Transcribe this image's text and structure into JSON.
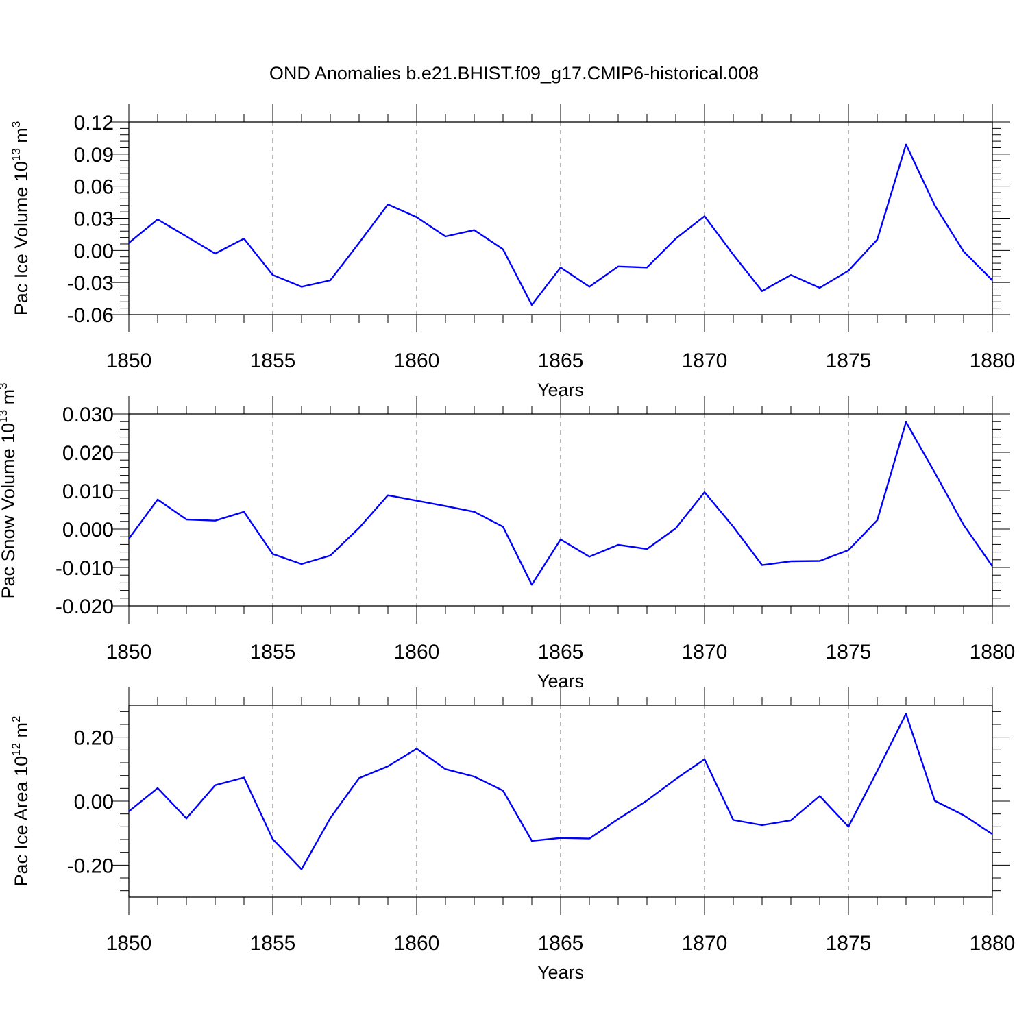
{
  "title": "OND Anomalies b.e21.BHIST.f09_g17.CMIP6-historical.008",
  "colors": {
    "line": "#0000ff",
    "axis": "#000000",
    "background": "#ffffff"
  },
  "chart_data": [
    {
      "type": "line",
      "ylabel_main": "Pac Ice Volume 10",
      "ylabel_exp": "13",
      "ylabel_unit": "m",
      "ylabel_unit_exp": "3",
      "xlabel": "Years",
      "xlim": [
        1850,
        1880
      ],
      "ylim": [
        -0.06,
        0.12
      ],
      "yticks": [
        "-0.06",
        "-0.03",
        "0.00",
        "0.03",
        "0.06",
        "0.09",
        "0.12"
      ],
      "ytick_values": [
        -0.06,
        -0.03,
        0.0,
        0.03,
        0.06,
        0.09,
        0.12
      ],
      "xticks": [
        "1850",
        "1855",
        "1860",
        "1865",
        "1870",
        "1875",
        "1880"
      ],
      "xtick_values": [
        1850,
        1855,
        1860,
        1865,
        1870,
        1875,
        1880
      ],
      "x": [
        1850,
        1851,
        1852,
        1853,
        1854,
        1855,
        1856,
        1857,
        1858,
        1859,
        1860,
        1861,
        1862,
        1863,
        1864,
        1865,
        1866,
        1867,
        1868,
        1869,
        1870,
        1871,
        1872,
        1873,
        1874,
        1875,
        1876,
        1877,
        1878,
        1879,
        1880
      ],
      "values": [
        0.007,
        0.029,
        0.013,
        -0.003,
        0.011,
        -0.023,
        -0.034,
        -0.028,
        0.007,
        0.043,
        0.031,
        0.013,
        0.019,
        0.001,
        -0.051,
        -0.016,
        -0.034,
        -0.015,
        -0.016,
        0.011,
        0.032,
        -0.004,
        -0.038,
        -0.023,
        -0.035,
        -0.019,
        0.01,
        0.099,
        0.042,
        -0.001,
        -0.028
      ]
    },
    {
      "type": "line",
      "ylabel_main": "Pac Snow Volume 10",
      "ylabel_exp": "13",
      "ylabel_unit": "m",
      "ylabel_unit_exp": "3",
      "xlabel": "Years",
      "xlim": [
        1850,
        1880
      ],
      "ylim": [
        -0.02,
        0.03
      ],
      "yticks": [
        "-0.020",
        "-0.010",
        "0.000",
        "0.010",
        "0.020",
        "0.030"
      ],
      "ytick_values": [
        -0.02,
        -0.01,
        0.0,
        0.01,
        0.02,
        0.03
      ],
      "xticks": [
        "1850",
        "1855",
        "1860",
        "1865",
        "1870",
        "1875",
        "1880"
      ],
      "xtick_values": [
        1850,
        1855,
        1860,
        1865,
        1870,
        1875,
        1880
      ],
      "x": [
        1850,
        1851,
        1852,
        1853,
        1854,
        1855,
        1856,
        1857,
        1858,
        1859,
        1860,
        1861,
        1862,
        1863,
        1864,
        1865,
        1866,
        1867,
        1868,
        1869,
        1870,
        1871,
        1872,
        1873,
        1874,
        1875,
        1876,
        1877,
        1878,
        1879,
        1880
      ],
      "values": [
        -0.0025,
        0.0077,
        0.0025,
        0.0022,
        0.0045,
        -0.0065,
        -0.0091,
        -0.0069,
        0.0003,
        0.0088,
        0.0074,
        0.006,
        0.0045,
        0.0006,
        -0.0145,
        -0.0027,
        -0.0072,
        -0.0041,
        -0.0052,
        0.0002,
        0.0096,
        0.0006,
        -0.0094,
        -0.0084,
        -0.0083,
        -0.0055,
        0.0023,
        0.0279,
        0.0147,
        0.0011,
        -0.0097
      ]
    },
    {
      "type": "line",
      "ylabel_main": "Pac Ice Area 10",
      "ylabel_exp": "12",
      "ylabel_unit": "m",
      "ylabel_unit_exp": "2",
      "xlabel": "Years",
      "xlim": [
        1850,
        1880
      ],
      "ylim": [
        -0.3,
        0.3
      ],
      "yticks": [
        "-0.20",
        "0.00",
        "0.20"
      ],
      "ytick_values": [
        -0.2,
        0.0,
        0.2
      ],
      "xticks": [
        "1850",
        "1855",
        "1860",
        "1865",
        "1870",
        "1875",
        "1880"
      ],
      "xtick_values": [
        1850,
        1855,
        1860,
        1865,
        1870,
        1875,
        1880
      ],
      "x": [
        1850,
        1851,
        1852,
        1853,
        1854,
        1855,
        1856,
        1857,
        1858,
        1859,
        1860,
        1861,
        1862,
        1863,
        1864,
        1865,
        1866,
        1867,
        1868,
        1869,
        1870,
        1871,
        1872,
        1873,
        1874,
        1875,
        1876,
        1877,
        1878,
        1879,
        1880
      ],
      "values": [
        -0.032,
        0.041,
        -0.054,
        0.05,
        0.074,
        -0.119,
        -0.213,
        -0.053,
        0.072,
        0.109,
        0.164,
        0.1,
        0.077,
        0.033,
        -0.124,
        -0.115,
        -0.117,
        -0.056,
        0.002,
        0.069,
        0.131,
        -0.059,
        -0.075,
        -0.06,
        0.016,
        -0.08,
        0.094,
        0.273,
        0.001,
        -0.044,
        -0.103
      ]
    }
  ]
}
